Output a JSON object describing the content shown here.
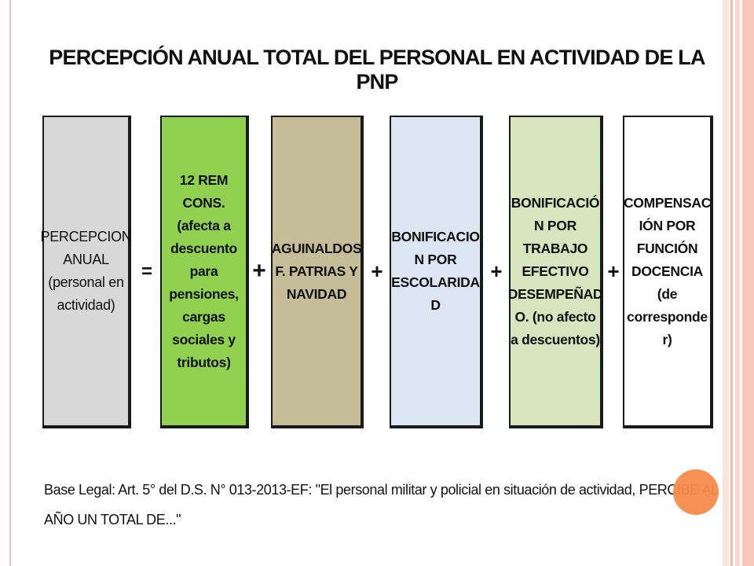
{
  "title": "PERCEPCIÓN ANUAL TOTAL DEL PERSONAL EN ACTIVIDAD DE LA PNP",
  "boxes": [
    {
      "lines": [
        "PERCEPCION",
        "ANUAL",
        "(personal en",
        "actividad)"
      ],
      "color": "#d8d8d8"
    },
    {
      "lines": [
        "12 REM",
        "CONS.",
        "(afecta a",
        "descuento",
        "para",
        "pensiones,",
        "cargas",
        "sociales y",
        "tributos)"
      ],
      "color": "#92d050"
    },
    {
      "lines": [
        "AGUINALDOS",
        "F. PATRIAS Y",
        "NAVIDAD"
      ],
      "color": "#c4bd97"
    },
    {
      "lines": [
        "BONIFICACIO",
        "N POR",
        "ESCOLARIDA",
        "D"
      ],
      "color": "#dce6f2"
    },
    {
      "lines": [
        "BONIFICACIÓ",
        "N POR",
        "TRABAJO",
        "EFECTIVO",
        "DESEMPEÑAD",
        "O. (no afecto",
        "a descuentos)"
      ],
      "color": "#d7e4bd"
    },
    {
      "lines": [
        "COMPENSAC",
        "IÓN POR",
        "FUNCIÓN",
        "DOCENCIA",
        "(de",
        "corresponde",
        "r)"
      ],
      "color": "#ffffff"
    }
  ],
  "operators": [
    "=",
    "+",
    "+",
    "+",
    "+"
  ],
  "legal_text": "Base Legal:  Art. 5° del D.S. N° 013-2013-EF: \"El personal militar y policial en situación de actividad, PERCIBE AL AÑO UN TOTAL DE...\""
}
